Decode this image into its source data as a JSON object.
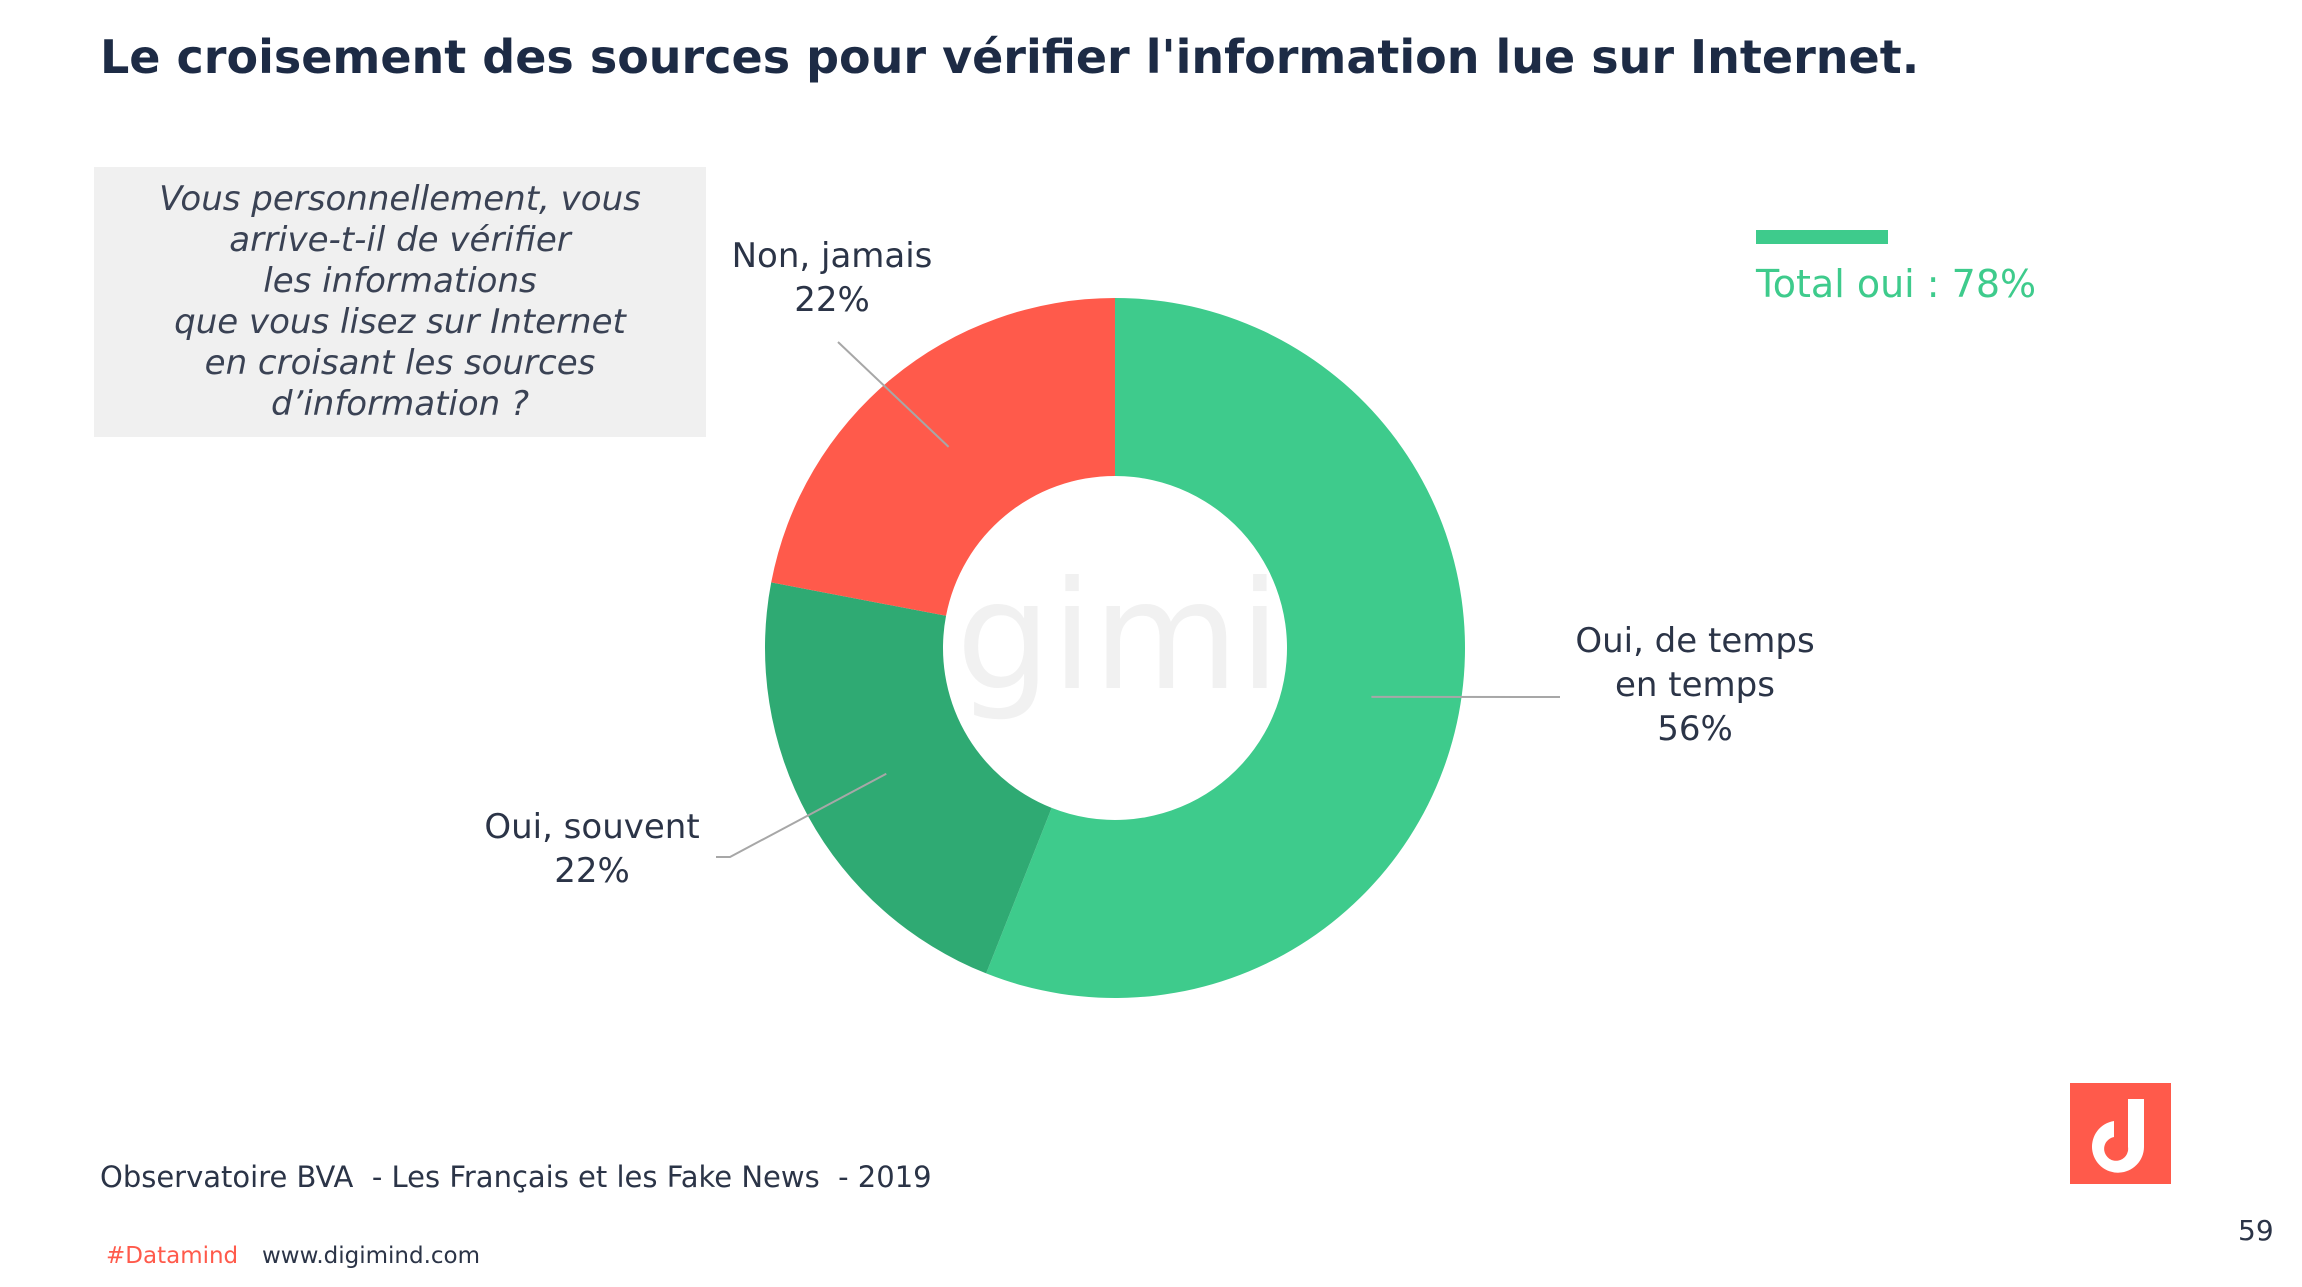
{
  "slide": {
    "title": "Le croisement des sources pour vérifier l'information lue sur Internet.",
    "question_lines": [
      "Vous personnellement, vous",
      "arrive-t-il de vérifier",
      "les informations",
      "que vous lisez sur Internet",
      "en croisant les sources",
      "d’information ?"
    ],
    "total": "Total oui : 78%",
    "source": "Observatoire BVA  - Les Français et les Fake News  - 2019",
    "hashtag": "#Datamind",
    "url": "www.digimind.com",
    "page_number": "59",
    "watermark": "digimind",
    "logo_icon": "digimind-logo-icon"
  },
  "colors": {
    "green_light": "#3ecb8c",
    "green_dark": "#2faa73",
    "red": "#ff5a4b",
    "title": "#1d2b45",
    "text": "#2b3447"
  },
  "chart_data": {
    "type": "pie",
    "subtype": "donut",
    "title": "",
    "slices": [
      {
        "label_lines": [
          "Oui, de temps",
          "en temps"
        ],
        "value": 56,
        "value_label": "56%",
        "color": "#3ecb8c"
      },
      {
        "label_lines": [
          "Oui, souvent"
        ],
        "value": 22,
        "value_label": "22%",
        "color": "#2faa73"
      },
      {
        "label_lines": [
          "Non, jamais"
        ],
        "value": 22,
        "value_label": "22%",
        "color": "#ff5a4b"
      }
    ],
    "start": "12 o'clock",
    "direction": "clockwise"
  }
}
